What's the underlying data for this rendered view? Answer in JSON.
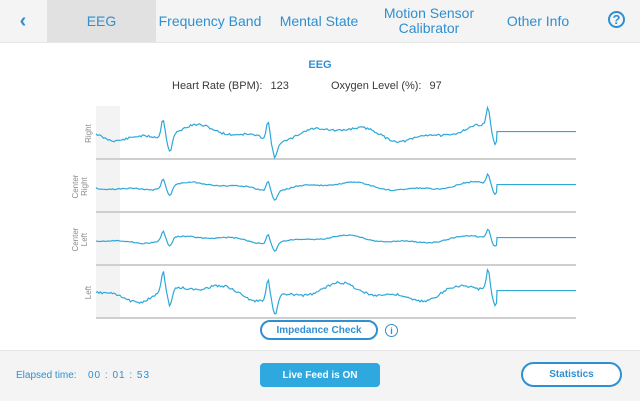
{
  "nav": {
    "back_icon": "chevron-left-icon",
    "tabs": [
      {
        "label": "EEG",
        "active": true
      },
      {
        "label": "Frequency Band",
        "active": false
      },
      {
        "label": "Mental State",
        "active": false
      },
      {
        "label": "Motion Sensor Calibrator",
        "active": false
      },
      {
        "label": "Other Info",
        "active": false
      }
    ],
    "help_icon": "question-circle-icon",
    "help_glyph": "?"
  },
  "eeg": {
    "title": "EEG",
    "heart_rate_label": "Heart Rate (BPM):",
    "heart_rate_value": "123",
    "oxygen_label": "Oxygen Level (%):",
    "oxygen_value": "97",
    "channels": [
      "Right",
      "Center Right",
      "Center Left",
      "Left"
    ],
    "trace_color": "#2fa8d8"
  },
  "impedance": {
    "button_label": "Impedance Check",
    "info_icon": "info-circle-icon",
    "info_glyph": "i"
  },
  "footer": {
    "elapsed_label": "Elapsed time:",
    "elapsed_value": "00 : 01 : 53",
    "live_label": "Live Feed is ON",
    "stats_label": "Statistics"
  }
}
